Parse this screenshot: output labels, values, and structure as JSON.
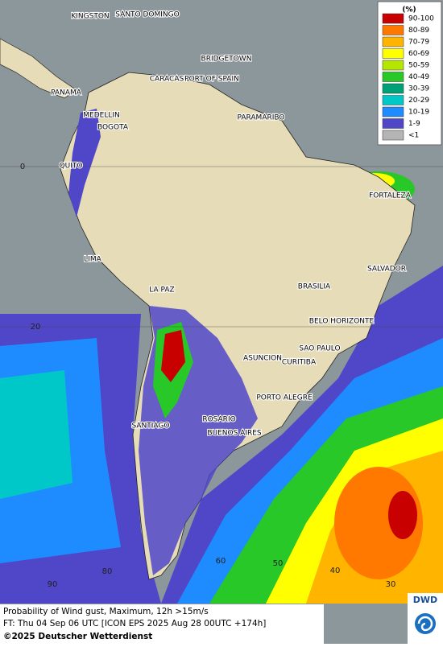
{
  "legend": {
    "title": "(%)",
    "items": [
      {
        "label": "90-100",
        "color": "#c80000"
      },
      {
        "label": "80-89",
        "color": "#ff7800"
      },
      {
        "label": "70-79",
        "color": "#ffb400"
      },
      {
        "label": "60-69",
        "color": "#ffff00"
      },
      {
        "label": "50-59",
        "color": "#b4e600"
      },
      {
        "label": "40-49",
        "color": "#28c828"
      },
      {
        "label": "30-39",
        "color": "#00a078"
      },
      {
        "label": "20-29",
        "color": "#00c8c8"
      },
      {
        "label": "10-19",
        "color": "#1e8cff"
      },
      {
        "label": "1-9",
        "color": "#5046c8"
      },
      {
        "label": "<1",
        "color": "#b4b4b4"
      }
    ]
  },
  "cities": [
    "KINGSTON",
    "SANTO DOMINGO",
    "BRIDGETOWN",
    "CARACAS",
    "PORT OF SPAIN",
    "PANAMA",
    "MEDELLIN",
    "BOGOTA",
    "PARAMARIBO",
    "QUITO",
    "FORTALEZA",
    "LIMA",
    "SALVADOR",
    "BRASILIA",
    "LA PAZ",
    "BELO HORIZONTE",
    "SAO PAULO",
    "ASUNCION",
    "CURITIBA",
    "PORTO ALEGRE",
    "ROSARIO",
    "SANTIAGO",
    "BUENOS AIRES"
  ],
  "grid_labels": [
    "0",
    "20",
    "90",
    "80",
    "60",
    "50",
    "40",
    "30"
  ],
  "footer": {
    "line1": "Probability of Wind gust, Maximum, 12h >15m/s",
    "line2": "FT: Thu 04 Sep 06 UTC [ICON EPS 2025 Aug 28 00UTC +174h]",
    "copyright": "©2025 Deutscher Wetterdienst"
  },
  "logo": "DWD"
}
